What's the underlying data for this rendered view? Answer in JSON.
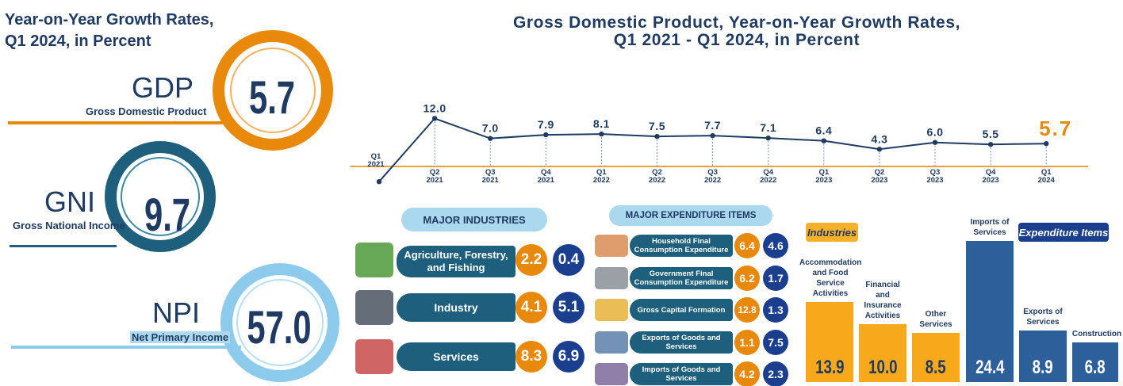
{
  "left": {
    "title_line1": "Year-on-Year Growth Rates,",
    "title_line2": "Q1 2024, in Percent",
    "gdp": {
      "abbr": "GDP",
      "full": "Gross Domestic Product",
      "value": "5.7"
    },
    "gni": {
      "abbr": "GNI",
      "full": "Gross National Income",
      "value": "9.7"
    },
    "npi": {
      "abbr": "NPI",
      "full": "Net Primary Income",
      "value": "57.0"
    }
  },
  "chart_data": {
    "type": "line",
    "title_line1": "Gross Domestic Product, Year-on-Year Growth Rates,",
    "title_line2": "Q1 2021 - Q1 2024, in Percent",
    "categories": [
      [
        "Q1",
        "2021"
      ],
      [
        "Q2",
        "2021"
      ],
      [
        "Q3",
        "2021"
      ],
      [
        "Q4",
        "2021"
      ],
      [
        "Q1",
        "2022"
      ],
      [
        "Q2",
        "2022"
      ],
      [
        "Q3",
        "2022"
      ],
      [
        "Q4",
        "2022"
      ],
      [
        "Q1",
        "2023"
      ],
      [
        "Q2",
        "2023"
      ],
      [
        "Q3",
        "2023"
      ],
      [
        "Q4",
        "2023"
      ],
      [
        "Q1",
        "2024"
      ]
    ],
    "values": [
      -3.8,
      12.0,
      7.0,
      7.9,
      8.1,
      7.5,
      7.7,
      7.1,
      6.4,
      4.3,
      6.0,
      5.5,
      5.7
    ],
    "value_labels": [
      "",
      "12.0",
      "7.0",
      "7.9",
      "8.1",
      "7.5",
      "7.7",
      "7.1",
      "6.4",
      "4.3",
      "6.0",
      "5.5",
      "5.7"
    ],
    "highlight_index": 12,
    "colors": {
      "line": "#1f3b63",
      "axis": "#e8a33c",
      "highlight": "#e8890c"
    }
  },
  "industries": {
    "header": "MAJOR INDUSTRIES",
    "items": [
      {
        "label": "Agriculture, Forestry, and Fishing",
        "q1_2024": "2.2",
        "q4_2023": "0.4"
      },
      {
        "label": "Industry",
        "q1_2024": "4.1",
        "q4_2023": "5.1"
      },
      {
        "label": "Services",
        "q1_2024": "8.3",
        "q4_2023": "6.9"
      }
    ]
  },
  "expenditure": {
    "header": "MAJOR EXPENDITURE ITEMS",
    "items": [
      {
        "label": "Household Final Consumption Expenditure",
        "a": "6.4",
        "b": "4.6"
      },
      {
        "label": "Government Final Consumption Expenditure",
        "a": "6.2",
        "b": "1.7"
      },
      {
        "label": "Gross Capital Formation",
        "a": "12.8",
        "b": "1.3"
      },
      {
        "label": "Exports of Goods and Services",
        "a": "1.1",
        "b": "7.5"
      },
      {
        "label": "Imports of Goods and Services",
        "a": "4.2",
        "b": "2.3"
      }
    ]
  },
  "top_bars": {
    "industries_tag": "Industries",
    "expenditure_tag": "Expenditure Items",
    "industries": [
      {
        "label": "Accommodation and Food Service Activities",
        "value": 13.9
      },
      {
        "label": "Financial and Insurance Activities",
        "value": 10.0
      },
      {
        "label": "Other Services",
        "value": 8.5
      }
    ],
    "expenditure": [
      {
        "label": "Imports of Services",
        "value": 24.4
      },
      {
        "label": "Exports of Services",
        "value": 8.9
      },
      {
        "label": "Construction",
        "value": 6.8
      }
    ]
  }
}
